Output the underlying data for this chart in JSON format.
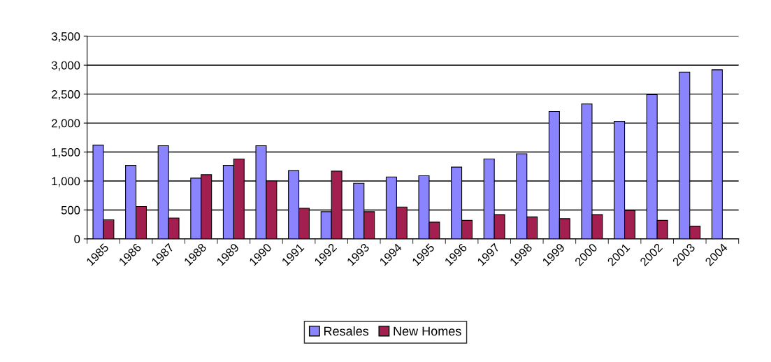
{
  "chart_data": {
    "type": "bar",
    "categories": [
      "1985",
      "1986",
      "1987",
      "1988",
      "1989",
      "1990",
      "1991",
      "1992",
      "1993",
      "1994",
      "1995",
      "1996",
      "1997",
      "1998",
      "1999",
      "2000",
      "2001",
      "2002",
      "2003",
      "2004"
    ],
    "series": [
      {
        "name": "Resales",
        "color": "#8a85ff",
        "values": [
          1620,
          1270,
          1610,
          1050,
          1270,
          1610,
          1180,
          470,
          960,
          1070,
          1090,
          1240,
          1380,
          1470,
          2200,
          2330,
          2030,
          2490,
          2880,
          2920
        ]
      },
      {
        "name": "New Homes",
        "color": "#a31f4f",
        "values": [
          330,
          560,
          360,
          1110,
          1380,
          1000,
          530,
          1170,
          470,
          550,
          290,
          320,
          420,
          380,
          350,
          420,
          490,
          320,
          220,
          null
        ]
      }
    ],
    "ylim": [
      0,
      3500
    ],
    "yticks": [
      {
        "value": 0,
        "label": "0"
      },
      {
        "value": 500,
        "label": "500"
      },
      {
        "value": 1000,
        "label": "1,000"
      },
      {
        "value": 1500,
        "label": "1,500"
      },
      {
        "value": 2000,
        "label": "2,000"
      },
      {
        "value": 2500,
        "label": "2,500"
      },
      {
        "value": 3000,
        "label": "3,000"
      },
      {
        "value": 3500,
        "label": "3,500"
      }
    ],
    "grid": "y",
    "legend": "bottom"
  }
}
